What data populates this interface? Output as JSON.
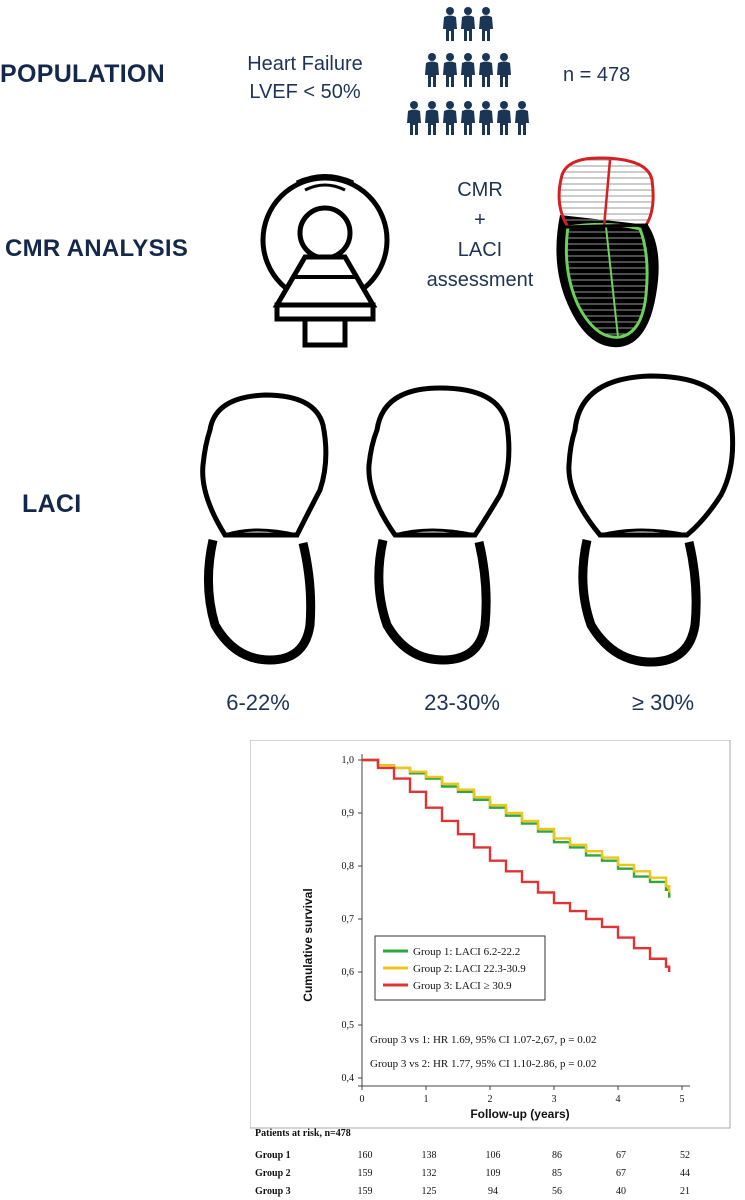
{
  "population": {
    "label": "POPULATION",
    "condition_line1": "Heart Failure",
    "condition_line2": "LVEF < 50%",
    "n_text": "n = 478"
  },
  "cmr": {
    "label": "CMR ANALYSIS",
    "line1": "CMR",
    "line2": "+",
    "line3": "LACI",
    "line4": "assessment"
  },
  "laci": {
    "label": "LACI",
    "ranges": [
      "6-22%",
      "23-30%",
      "≥ 30%"
    ]
  },
  "chart_data": {
    "type": "line",
    "xlabel": "Follow-up (years)",
    "ylabel": "Cumulative survival",
    "xlim": [
      0,
      5
    ],
    "ylim": [
      0.4,
      1.0
    ],
    "x_ticks": [
      "0",
      "1",
      "2",
      "3",
      "4",
      "5"
    ],
    "y_ticks": [
      "0,4",
      "0,5",
      "0,6",
      "0,7",
      "0,8",
      "0,9",
      "1,0"
    ],
    "legend": "center-right",
    "series": [
      {
        "name": "Group 1: LACI 6.2-22.2",
        "color": "#2ea83a",
        "x": [
          0,
          0.25,
          0.5,
          0.75,
          1.0,
          1.25,
          1.5,
          1.75,
          2.0,
          2.25,
          2.5,
          2.75,
          3.0,
          3.25,
          3.5,
          3.75,
          4.0,
          4.25,
          4.5,
          4.75,
          4.8
        ],
        "y": [
          1.0,
          0.99,
          0.985,
          0.975,
          0.965,
          0.95,
          0.94,
          0.925,
          0.91,
          0.895,
          0.88,
          0.865,
          0.845,
          0.835,
          0.82,
          0.81,
          0.795,
          0.78,
          0.77,
          0.755,
          0.74
        ]
      },
      {
        "name": "Group 2: LACI 22.3-30.9",
        "color": "#f0c419",
        "x": [
          0,
          0.25,
          0.5,
          0.75,
          1.0,
          1.25,
          1.5,
          1.75,
          2.0,
          2.25,
          2.5,
          2.75,
          3.0,
          3.25,
          3.5,
          3.75,
          4.0,
          4.25,
          4.5,
          4.75,
          4.8
        ],
        "y": [
          1.0,
          0.99,
          0.985,
          0.978,
          0.968,
          0.955,
          0.944,
          0.93,
          0.915,
          0.9,
          0.885,
          0.87,
          0.852,
          0.84,
          0.828,
          0.816,
          0.802,
          0.79,
          0.778,
          0.762,
          0.75
        ]
      },
      {
        "name": "Group 3: LACI ≥ 30.9",
        "color": "#e03434",
        "x": [
          0,
          0.25,
          0.5,
          0.75,
          1.0,
          1.25,
          1.5,
          1.75,
          2.0,
          2.25,
          2.5,
          2.75,
          3.0,
          3.25,
          3.5,
          3.75,
          4.0,
          4.25,
          4.5,
          4.75,
          4.8
        ],
        "y": [
          1.0,
          0.985,
          0.965,
          0.94,
          0.91,
          0.885,
          0.86,
          0.835,
          0.81,
          0.79,
          0.77,
          0.75,
          0.73,
          0.715,
          0.7,
          0.685,
          0.665,
          0.645,
          0.625,
          0.61,
          0.6
        ]
      }
    ],
    "annotations": [
      "Group 3 vs 1: HR 1.69, 95% CI 1.07-2,67, p = 0.02",
      "Group 3 vs 2: HR 1.77, 95% CI 1.10-2.86, p = 0.02"
    ]
  },
  "risk_table": {
    "title": "Patients at risk, n=478",
    "rows": [
      {
        "group": "Group 1",
        "values": [
          "160",
          "138",
          "106",
          "86",
          "67",
          "52"
        ]
      },
      {
        "group": "Group 2",
        "values": [
          "159",
          "132",
          "109",
          "85",
          "67",
          "44"
        ]
      },
      {
        "group": "Group 3",
        "values": [
          "159",
          "125",
          "94",
          "56",
          "40",
          "21"
        ]
      }
    ]
  },
  "colors": {
    "navy": "#14284b",
    "green": "#2ea83a",
    "yellow": "#f0c419",
    "red": "#e03434"
  }
}
